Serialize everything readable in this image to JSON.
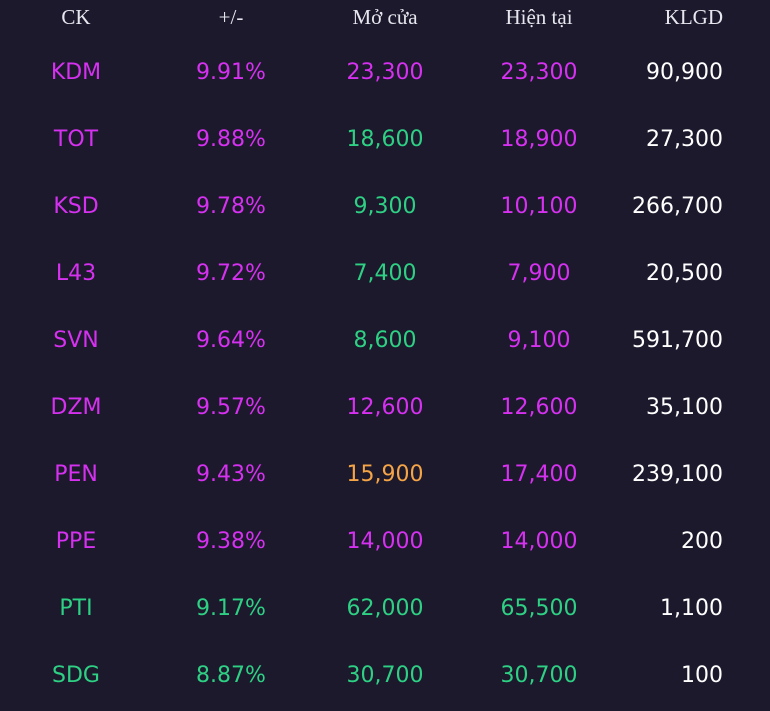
{
  "colors": {
    "background": "#1c192d",
    "ceiling": "#d631f0",
    "up": "#2ed184",
    "reference": "#f5a446",
    "volume": "#ffffff",
    "header": "#e6e6ee"
  },
  "header": {
    "ck": "CK",
    "change": "+/-",
    "open": "Mở cửa",
    "current": "Hiện tại",
    "volume": "KLGD"
  },
  "rows": [
    {
      "ck": "KDM",
      "change": "9.91%",
      "open": "23,300",
      "current": "23,300",
      "volume": "90,900",
      "ck_color": "ceiling",
      "change_color": "ceiling",
      "open_color": "ceiling",
      "current_color": "ceiling"
    },
    {
      "ck": "TOT",
      "change": "9.88%",
      "open": "18,600",
      "current": "18,900",
      "volume": "27,300",
      "ck_color": "ceiling",
      "change_color": "ceiling",
      "open_color": "up",
      "current_color": "ceiling"
    },
    {
      "ck": "KSD",
      "change": "9.78%",
      "open": "9,300",
      "current": "10,100",
      "volume": "266,700",
      "ck_color": "ceiling",
      "change_color": "ceiling",
      "open_color": "up",
      "current_color": "ceiling"
    },
    {
      "ck": "L43",
      "change": "9.72%",
      "open": "7,400",
      "current": "7,900",
      "volume": "20,500",
      "ck_color": "ceiling",
      "change_color": "ceiling",
      "open_color": "up",
      "current_color": "ceiling"
    },
    {
      "ck": "SVN",
      "change": "9.64%",
      "open": "8,600",
      "current": "9,100",
      "volume": "591,700",
      "ck_color": "ceiling",
      "change_color": "ceiling",
      "open_color": "up",
      "current_color": "ceiling"
    },
    {
      "ck": "DZM",
      "change": "9.57%",
      "open": "12,600",
      "current": "12,600",
      "volume": "35,100",
      "ck_color": "ceiling",
      "change_color": "ceiling",
      "open_color": "ceiling",
      "current_color": "ceiling"
    },
    {
      "ck": "PEN",
      "change": "9.43%",
      "open": "15,900",
      "current": "17,400",
      "volume": "239,100",
      "ck_color": "ceiling",
      "change_color": "ceiling",
      "open_color": "reference",
      "current_color": "ceiling"
    },
    {
      "ck": "PPE",
      "change": "9.38%",
      "open": "14,000",
      "current": "14,000",
      "volume": "200",
      "ck_color": "ceiling",
      "change_color": "ceiling",
      "open_color": "ceiling",
      "current_color": "ceiling"
    },
    {
      "ck": "PTI",
      "change": "9.17%",
      "open": "62,000",
      "current": "65,500",
      "volume": "1,100",
      "ck_color": "up",
      "change_color": "up",
      "open_color": "up",
      "current_color": "up"
    },
    {
      "ck": "SDG",
      "change": "8.87%",
      "open": "30,700",
      "current": "30,700",
      "volume": "100",
      "ck_color": "up",
      "change_color": "up",
      "open_color": "up",
      "current_color": "up"
    }
  ]
}
